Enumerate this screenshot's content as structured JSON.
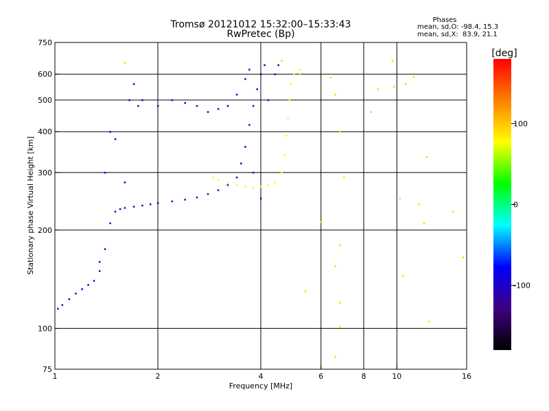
{
  "chart_data": {
    "type": "scatter",
    "title": "Tromsø 20121012 15:32:00–15:33:43",
    "subtitle": "RwPretec (Bp)",
    "xlabel": "Frequency [MHz]",
    "ylabel": "Stationary phase Virtual Height [km]",
    "xscale": "log",
    "yscale": "log",
    "xlim": [
      1,
      16
    ],
    "ylim": [
      75,
      750
    ],
    "xticks": [
      1,
      2,
      4,
      6,
      8,
      10,
      16
    ],
    "yticks": [
      75,
      100,
      200,
      300,
      400,
      500,
      600,
      750
    ],
    "vlines": [
      2,
      4,
      6,
      8,
      10
    ],
    "hlines": [
      100,
      200,
      300,
      400,
      500,
      600
    ],
    "phase_box": {
      "title": "Phases",
      "line1": "mean, sd,O: -98.4, 15.3",
      "line2": "mean, sd,X:  83.9, 21.1"
    },
    "colorbar": {
      "label": "[deg]",
      "range": [
        -180,
        180
      ],
      "ticks": [
        100,
        0,
        -100
      ],
      "colors": [
        "#ff0000",
        "#ff8000",
        "#ffff00",
        "#00ff00",
        "#00ffff",
        "#0000ff",
        "#400080",
        "#000000"
      ]
    },
    "series": [
      {
        "kind": "O-trace",
        "phase": -100,
        "points": [
          [
            1.02,
            115
          ],
          [
            1.05,
            118
          ],
          [
            1.1,
            123
          ],
          [
            1.15,
            128
          ],
          [
            1.2,
            132
          ],
          [
            1.25,
            136
          ],
          [
            1.3,
            140
          ],
          [
            1.35,
            150
          ],
          [
            1.4,
            175
          ],
          [
            1.45,
            210
          ],
          [
            1.5,
            228
          ],
          [
            1.55,
            232
          ],
          [
            1.6,
            234
          ],
          [
            1.7,
            236
          ],
          [
            1.8,
            238
          ],
          [
            1.9,
            240
          ],
          [
            2.0,
            242
          ],
          [
            2.2,
            245
          ],
          [
            2.4,
            248
          ],
          [
            2.6,
            252
          ],
          [
            2.8,
            258
          ],
          [
            3.0,
            265
          ],
          [
            3.2,
            275
          ],
          [
            3.4,
            290
          ],
          [
            3.5,
            320
          ],
          [
            3.6,
            360
          ],
          [
            3.7,
            420
          ],
          [
            3.8,
            480
          ],
          [
            3.9,
            540
          ],
          [
            4.0,
            600
          ],
          [
            4.1,
            640
          ]
        ]
      },
      {
        "kind": "O-spread",
        "phase": -95,
        "points": [
          [
            1.35,
            160
          ],
          [
            1.4,
            300
          ],
          [
            1.45,
            400
          ],
          [
            1.5,
            380
          ],
          [
            1.6,
            280
          ],
          [
            1.65,
            500
          ],
          [
            1.7,
            560
          ],
          [
            1.75,
            480
          ],
          [
            1.8,
            500
          ],
          [
            2.0,
            480
          ],
          [
            2.2,
            500
          ],
          [
            2.4,
            490
          ],
          [
            2.6,
            480
          ],
          [
            2.8,
            460
          ],
          [
            3.0,
            470
          ],
          [
            3.2,
            480
          ],
          [
            3.4,
            520
          ],
          [
            3.6,
            580
          ],
          [
            3.7,
            620
          ],
          [
            3.8,
            300
          ],
          [
            4.0,
            250
          ],
          [
            4.2,
            500
          ],
          [
            4.4,
            600
          ],
          [
            4.5,
            640
          ]
        ]
      },
      {
        "kind": "X-trace",
        "phase": 80,
        "points": [
          [
            2.9,
            290
          ],
          [
            3.0,
            285
          ],
          [
            3.2,
            280
          ],
          [
            3.4,
            275
          ],
          [
            3.6,
            272
          ],
          [
            3.8,
            270
          ],
          [
            4.0,
            272
          ],
          [
            4.2,
            275
          ],
          [
            4.4,
            280
          ],
          [
            4.6,
            300
          ],
          [
            4.7,
            340
          ],
          [
            4.75,
            390
          ],
          [
            4.8,
            440
          ],
          [
            4.85,
            500
          ],
          [
            4.9,
            560
          ],
          [
            5.0,
            600
          ],
          [
            5.2,
            620
          ]
        ]
      },
      {
        "kind": "scatter-noise",
        "phase": 60,
        "points": [
          [
            1.6,
            650
          ],
          [
            4.6,
            660
          ],
          [
            5.2,
            600
          ],
          [
            5.4,
            130
          ],
          [
            6.4,
            585
          ],
          [
            6.6,
            520
          ],
          [
            6.8,
            400
          ],
          [
            6.6,
            155
          ],
          [
            6.8,
            180
          ],
          [
            7.0,
            290
          ],
          [
            6.8,
            101
          ],
          [
            6.8,
            120
          ],
          [
            6.6,
            82
          ],
          [
            8.4,
            460
          ],
          [
            8.8,
            540
          ],
          [
            9.7,
            660
          ],
          [
            9.8,
            550
          ],
          [
            10.2,
            250
          ],
          [
            10.4,
            145
          ],
          [
            10.6,
            560
          ],
          [
            11.2,
            590
          ],
          [
            11.6,
            240
          ],
          [
            12.0,
            210
          ],
          [
            12.2,
            335
          ],
          [
            12.4,
            105
          ],
          [
            14.6,
            228
          ],
          [
            15.6,
            165
          ],
          [
            6.0,
            212
          ]
        ]
      }
    ]
  }
}
